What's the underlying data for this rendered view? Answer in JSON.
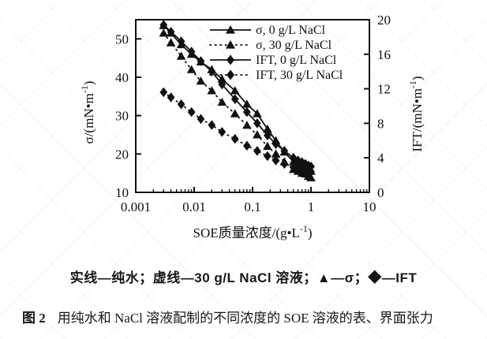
{
  "figure": {
    "note_line": "实线—纯水；虚线—30 g/L NaCl 溶液；▲—σ；◆—IFT",
    "caption_prefix": "图 2",
    "caption_text": "用纯水和 NaCl 溶液配制的不同浓度的 SOE 溶液的表、界面张力"
  },
  "chart_data": {
    "type": "line",
    "x_axis": {
      "label": "SOE质量浓度/(g•L⁻¹)",
      "scale": "log",
      "range": [
        0.001,
        10
      ],
      "ticks": [
        0.001,
        0.01,
        0.1,
        1,
        10
      ],
      "tick_labels": [
        "0.001",
        "0.01",
        "0.1",
        "1",
        "10"
      ],
      "minor_ticks": "log-decades"
    },
    "y_axis_left": {
      "label": "σ/(mN•m⁻¹)",
      "range": [
        10,
        55
      ],
      "ticks": [
        10,
        20,
        30,
        40,
        50
      ]
    },
    "y_axis_right": {
      "label": "IFT/(mN•m⁻¹)",
      "range": [
        0,
        20
      ],
      "ticks": [
        0,
        4,
        8,
        12,
        16,
        20
      ]
    },
    "grid": false,
    "legend": {
      "position": "top-right-inside",
      "entries": [
        {
          "label": "σ, 0 g/L NaCl",
          "marker": "triangle",
          "line": "solid"
        },
        {
          "label": "σ, 30 g/L NaCl",
          "marker": "triangle",
          "line": "dotted"
        },
        {
          "label": "IFT, 0 g/L NaCl",
          "marker": "diamond",
          "line": "solid"
        },
        {
          "label": "IFT, 30 g/L NaCl",
          "marker": "diamond",
          "line": "dotted"
        }
      ]
    },
    "series": [
      {
        "name": "σ, 0 g/L NaCl",
        "axis": "left",
        "marker": "triangle",
        "line": "solid",
        "x": [
          0.003,
          0.004,
          0.006,
          0.009,
          0.013,
          0.02,
          0.03,
          0.05,
          0.08,
          0.12,
          0.18,
          0.25,
          0.35,
          0.5,
          0.6,
          0.7,
          0.8,
          0.9,
          1.0
        ],
        "y": [
          53.5,
          51.5,
          48.5,
          46,
          44,
          42,
          39.5,
          36.5,
          33,
          30.5,
          26.5,
          23.5,
          20.5,
          18,
          17.5,
          17,
          16.5,
          16,
          15.5
        ]
      },
      {
        "name": "σ, 30 g/L NaCl",
        "axis": "left",
        "marker": "triangle",
        "line": "dotted",
        "x": [
          0.003,
          0.004,
          0.006,
          0.009,
          0.013,
          0.02,
          0.03,
          0.05,
          0.08,
          0.12,
          0.18,
          0.25,
          0.35,
          0.5,
          0.6,
          0.7,
          0.8,
          0.9,
          1.0
        ],
        "y": [
          51.5,
          49,
          45.5,
          42,
          39,
          36.5,
          33.5,
          30.5,
          27.5,
          25,
          22,
          20,
          18,
          16,
          15.5,
          15,
          14.8,
          14.2,
          13.8
        ]
      },
      {
        "name": "IFT, 0 g/L NaCl",
        "axis": "right",
        "marker": "diamond",
        "line": "solid",
        "x": [
          0.003,
          0.004,
          0.006,
          0.009,
          0.013,
          0.02,
          0.03,
          0.05,
          0.08,
          0.12,
          0.18,
          0.25,
          0.35,
          0.5,
          0.6,
          0.7,
          0.8,
          0.9,
          1.0
        ],
        "y": [
          19.4,
          18.6,
          17.5,
          16.3,
          15.2,
          14,
          12.5,
          10.8,
          9.3,
          8,
          6.6,
          5.6,
          4.8,
          4,
          3.7,
          3.5,
          3.3,
          3.1,
          3.0
        ]
      },
      {
        "name": "IFT, 30 g/L NaCl",
        "axis": "right",
        "marker": "diamond",
        "line": "dotted",
        "x": [
          0.003,
          0.004,
          0.006,
          0.009,
          0.013,
          0.02,
          0.03,
          0.05,
          0.08,
          0.12,
          0.18,
          0.25,
          0.35,
          0.5,
          0.6,
          0.7,
          0.8,
          0.9,
          1.0
        ],
        "y": [
          11.6,
          11,
          10.2,
          9.3,
          8.5,
          7.8,
          7,
          6.2,
          5.4,
          4.8,
          4.2,
          3.7,
          3.3,
          2.9,
          2.8,
          2.7,
          2.6,
          2.5,
          2.4
        ]
      }
    ],
    "colors": {
      "foreground": "#111111",
      "watermark": "rgba(150,205,150,0.20)"
    }
  }
}
